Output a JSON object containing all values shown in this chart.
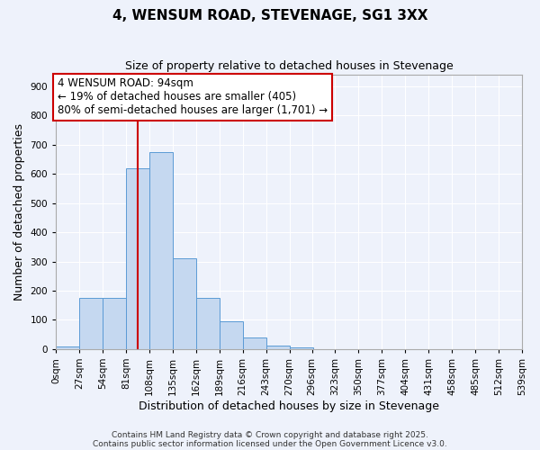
{
  "title": "4, WENSUM ROAD, STEVENAGE, SG1 3XX",
  "subtitle": "Size of property relative to detached houses in Stevenage",
  "xlabel": "Distribution of detached houses by size in Stevenage",
  "ylabel": "Number of detached properties",
  "bar_values": [
    10,
    175,
    175,
    620,
    675,
    310,
    175,
    95,
    40,
    12,
    5,
    0,
    0,
    0,
    0,
    0,
    0,
    0,
    0,
    0
  ],
  "bin_labels": [
    "0sqm",
    "27sqm",
    "54sqm",
    "81sqm",
    "108sqm",
    "135sqm",
    "162sqm",
    "189sqm",
    "216sqm",
    "243sqm",
    "270sqm",
    "296sqm",
    "323sqm",
    "350sqm",
    "377sqm",
    "404sqm",
    "431sqm",
    "458sqm",
    "485sqm",
    "512sqm",
    "539sqm"
  ],
  "bin_edges": [
    0,
    27,
    54,
    81,
    108,
    135,
    162,
    189,
    216,
    243,
    270,
    296,
    323,
    350,
    377,
    404,
    431,
    458,
    485,
    512,
    539
  ],
  "bar_color": "#c5d8f0",
  "bar_edge_color": "#5b9bd5",
  "vline_x": 94,
  "vline_color": "#cc0000",
  "ylim": [
    0,
    940
  ],
  "yticks": [
    0,
    100,
    200,
    300,
    400,
    500,
    600,
    700,
    800,
    900
  ],
  "annotation_title": "4 WENSUM ROAD: 94sqm",
  "annotation_line1": "← 19% of detached houses are smaller (405)",
  "annotation_line2": "80% of semi-detached houses are larger (1,701) →",
  "annotation_box_color": "#ffffff",
  "annotation_box_edge_color": "#cc0000",
  "bg_color": "#eef2fb",
  "grid_color": "#ffffff",
  "footer1": "Contains HM Land Registry data © Crown copyright and database right 2025.",
  "footer2": "Contains public sector information licensed under the Open Government Licence v3.0.",
  "title_fontsize": 11,
  "subtitle_fontsize": 9,
  "axis_label_fontsize": 9,
  "tick_fontsize": 7.5,
  "annotation_fontsize": 8.5,
  "footer_fontsize": 6.5
}
